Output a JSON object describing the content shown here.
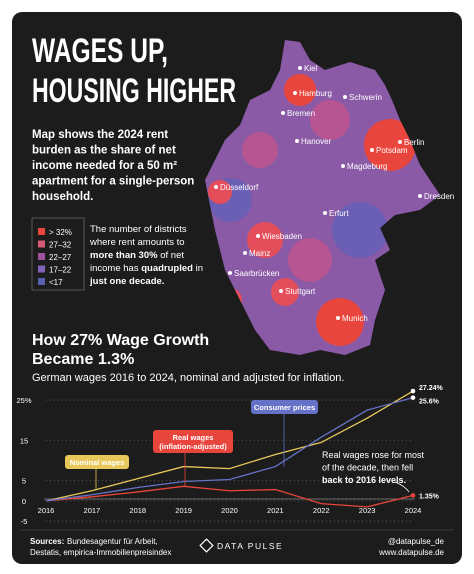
{
  "header": {
    "title_lines": [
      "WAGES UP,",
      "HOUSING HIGHER"
    ],
    "description": [
      "Map shows the 2024 rent",
      "burden as the share of net",
      "income needed for a 50 m²",
      "apartment for a single-person",
      "household."
    ]
  },
  "map": {
    "legend": [
      {
        "label": "> 32%",
        "color": "#e8453c"
      },
      {
        "label": "27–32",
        "color": "#d65a78"
      },
      {
        "label": "22–27",
        "color": "#a0519e"
      },
      {
        "label": "17–22",
        "color": "#8163b8"
      },
      {
        "label": "<17",
        "color": "#5561b0"
      }
    ],
    "note": [
      [
        {
          "text": "The number of districts",
          "bold": false
        }
      ],
      [
        {
          "text": "where rent amounts to",
          "bold": false
        }
      ],
      [
        {
          "text": "more than 30%",
          "bold": true
        },
        {
          "text": " of net",
          "bold": false
        }
      ],
      [
        {
          "text": "income has ",
          "bold": false
        },
        {
          "text": "quadrupled",
          "bold": true
        },
        {
          "text": " in",
          "bold": false
        }
      ],
      [
        {
          "text": "just one decade.",
          "bold": true
        }
      ]
    ],
    "cities": [
      "Kiel",
      "Hamburg",
      "Schwerin",
      "Bremen",
      "Berlin",
      "Hanover",
      "Potsdam",
      "Magdeburg",
      "Düsseldorf",
      "Dresden",
      "Erfurt",
      "Wiesbaden",
      "Mainz",
      "Saarbrücken",
      "Stuttgart",
      "Munich"
    ]
  },
  "chart_data": {
    "type": "line",
    "title": "How 27% Wage Growth",
    "title_line2": "Became 1.3%",
    "subtitle": "German wages 2016 to 2024, nominal and adjusted for inflation.",
    "x": [
      2016,
      2017,
      2018,
      2019,
      2020,
      2021,
      2022,
      2023,
      2024
    ],
    "xlim": [
      2016,
      2024
    ],
    "xticks": [
      2016,
      2017,
      2018,
      2019,
      2020,
      2021,
      2022,
      2023,
      2024
    ],
    "ylim": [
      -6,
      28
    ],
    "yticks": [
      -5,
      0,
      5,
      15,
      {
        "value": 25,
        "label": "25%"
      }
    ],
    "grid": true,
    "series": [
      {
        "name": "Nominal wages",
        "color": "#e8c85a",
        "values": [
          0,
          2.5,
          5.5,
          8.5,
          8,
          11.5,
          14.5,
          20.5,
          27.24
        ],
        "value_labels": [
          null,
          null,
          null,
          null,
          null,
          null,
          null,
          null,
          "27.24%"
        ]
      },
      {
        "name": "Real wages",
        "label_note": "(inflation-adjusted)",
        "color": "#e8453c",
        "values": [
          0,
          1,
          2.2,
          3.6,
          2.5,
          2.8,
          -0.7,
          -1.5,
          1.35
        ],
        "value_labels": [
          null,
          null,
          null,
          null,
          null,
          null,
          null,
          null,
          "1.35%"
        ]
      },
      {
        "name": "Consumer prices",
        "color": "#6672c8",
        "values": [
          0,
          1.5,
          3.3,
          4.8,
          5.3,
          8.5,
          15.8,
          22.5,
          25.6
        ],
        "value_labels": [
          null,
          null,
          null,
          null,
          null,
          null,
          null,
          null,
          "25.6%"
        ]
      }
    ],
    "annotation": [
      [
        {
          "text": "Real wages rose for most",
          "bold": false
        }
      ],
      [
        {
          "text": "of the decade, then fell",
          "bold": false
        }
      ],
      [
        {
          "text": "back to 2016 levels.",
          "bold": true
        }
      ]
    ]
  },
  "footer": {
    "sources_label": "Sources:",
    "sources": [
      "Bundesagentur für Arbeit,",
      "Destatis, empirica-Immobilienpreisindex"
    ],
    "brand": "DATA PULSE",
    "handle": "@datapulse_de",
    "website": "www.datapulse.de"
  }
}
